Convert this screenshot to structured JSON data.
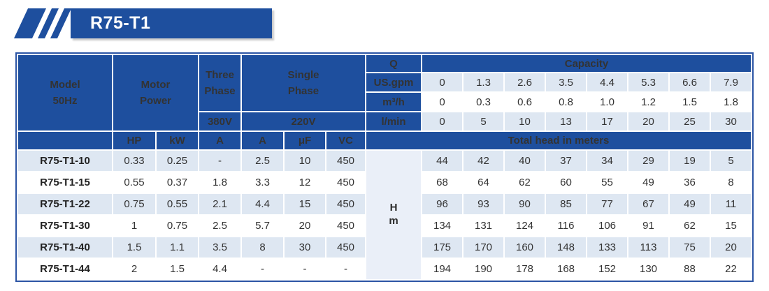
{
  "banner": {
    "title": "R75-T1"
  },
  "colors": {
    "brand_blue": "#1e4f9e",
    "stripe_light": "#dee7f2",
    "hm_cell_bg": "#eaeff8",
    "outer_border": "#2c55a5",
    "text_dark": "#333333"
  },
  "table": {
    "header": {
      "model_line1": "Model",
      "model_line2": "50Hz",
      "motor_line1": "Motor",
      "motor_line2": "Power",
      "three_line1": "Three",
      "three_line2": "Phase",
      "single_line1": "Single",
      "single_line2": "Phase",
      "v380": "380V",
      "v220": "220V",
      "q": "Q",
      "capacity": "Capacity",
      "spec_cols": [
        "HP",
        "kW",
        "A",
        "A",
        "μF",
        "VC"
      ],
      "total_head": "Total head in meters",
      "hm_line1": "H",
      "hm_line2": "m"
    },
    "capacity_rows": [
      {
        "label": "US.gpm",
        "values": [
          "0",
          "1.3",
          "2.6",
          "3.5",
          "4.4",
          "5.3",
          "6.6",
          "7.9"
        ]
      },
      {
        "label": "m³/h",
        "values": [
          "0",
          "0.3",
          "0.6",
          "0.8",
          "1.0",
          "1.2",
          "1.5",
          "1.8"
        ]
      },
      {
        "label": "l/min",
        "values": [
          "0",
          "5",
          "10",
          "13",
          "17",
          "20",
          "25",
          "30"
        ]
      }
    ],
    "rows": [
      {
        "model": "R75-T1-10",
        "specs": [
          "0.33",
          "0.25",
          "-",
          "2.5",
          "10",
          "450"
        ],
        "heads": [
          "44",
          "42",
          "40",
          "37",
          "34",
          "29",
          "19",
          "5"
        ]
      },
      {
        "model": "R75-T1-15",
        "specs": [
          "0.55",
          "0.37",
          "1.8",
          "3.3",
          "12",
          "450"
        ],
        "heads": [
          "68",
          "64",
          "62",
          "60",
          "55",
          "49",
          "36",
          "8"
        ]
      },
      {
        "model": "R75-T1-22",
        "specs": [
          "0.75",
          "0.55",
          "2.1",
          "4.4",
          "15",
          "450"
        ],
        "heads": [
          "96",
          "93",
          "90",
          "85",
          "77",
          "67",
          "49",
          "11"
        ]
      },
      {
        "model": "R75-T1-30",
        "specs": [
          "1",
          "0.75",
          "2.5",
          "5.7",
          "20",
          "450"
        ],
        "heads": [
          "134",
          "131",
          "124",
          "116",
          "106",
          "91",
          "62",
          "15"
        ]
      },
      {
        "model": "R75-T1-40",
        "specs": [
          "1.5",
          "1.1",
          "3.5",
          "8",
          "30",
          "450"
        ],
        "heads": [
          "175",
          "170",
          "160",
          "148",
          "133",
          "113",
          "75",
          "20"
        ]
      },
      {
        "model": "R75-T1-44",
        "specs": [
          "2",
          "1.5",
          "4.4",
          "-",
          "-",
          "-"
        ],
        "heads": [
          "194",
          "190",
          "178",
          "168",
          "152",
          "130",
          "88",
          "22"
        ]
      }
    ]
  }
}
